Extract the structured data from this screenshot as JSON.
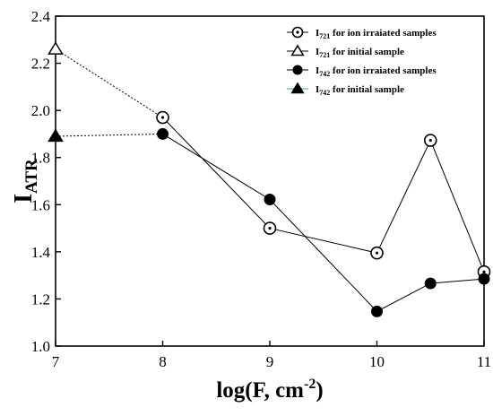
{
  "chart_data": {
    "type": "line",
    "xlabel": {
      "main": "log(F, cm",
      "sup": "-2",
      "close": ")"
    },
    "ylabel": {
      "main": "I",
      "sub": "ATR"
    },
    "xlim": [
      7,
      11
    ],
    "ylim": [
      1.0,
      2.4
    ],
    "xticks": [
      7,
      8,
      9,
      10,
      11
    ],
    "yticks": [
      1.0,
      1.2,
      1.4,
      1.6,
      1.8,
      2.0,
      2.2,
      2.4
    ],
    "legend_position": "top-right",
    "series": [
      {
        "name": {
          "main": "I",
          "sub": "721",
          "rest": " for ion irraiated samples"
        },
        "marker": "circle-dot",
        "line": "solid",
        "x": [
          8,
          9,
          10,
          10.5,
          11
        ],
        "y": [
          1.97,
          1.5,
          1.395,
          1.873,
          1.315
        ]
      },
      {
        "name": {
          "main": "I",
          "sub": "721",
          "rest": " for initial sample"
        },
        "marker": "triangle-open",
        "line": "none",
        "x": [
          7
        ],
        "y": [
          2.26
        ]
      },
      {
        "name": {
          "main": "I",
          "sub": "742",
          "rest": " for ion irraiated samples"
        },
        "marker": "circle-filled",
        "line": "solid",
        "x": [
          8,
          9,
          10,
          10.5,
          11
        ],
        "y": [
          1.9,
          1.622,
          1.147,
          1.266,
          1.285
        ]
      },
      {
        "name": {
          "main": "I",
          "sub": "742",
          "rest": " for initial sample"
        },
        "marker": "triangle-filled",
        "line": "none",
        "x": [
          7
        ],
        "y": [
          1.89
        ]
      }
    ],
    "connectors": [
      {
        "from": {
          "x": 7,
          "y": 2.26
        },
        "to": {
          "x": 8,
          "y": 1.97
        },
        "style": "dotted"
      },
      {
        "from": {
          "x": 7,
          "y": 1.89
        },
        "to": {
          "x": 8,
          "y": 1.9
        },
        "style": "dotted"
      }
    ]
  }
}
